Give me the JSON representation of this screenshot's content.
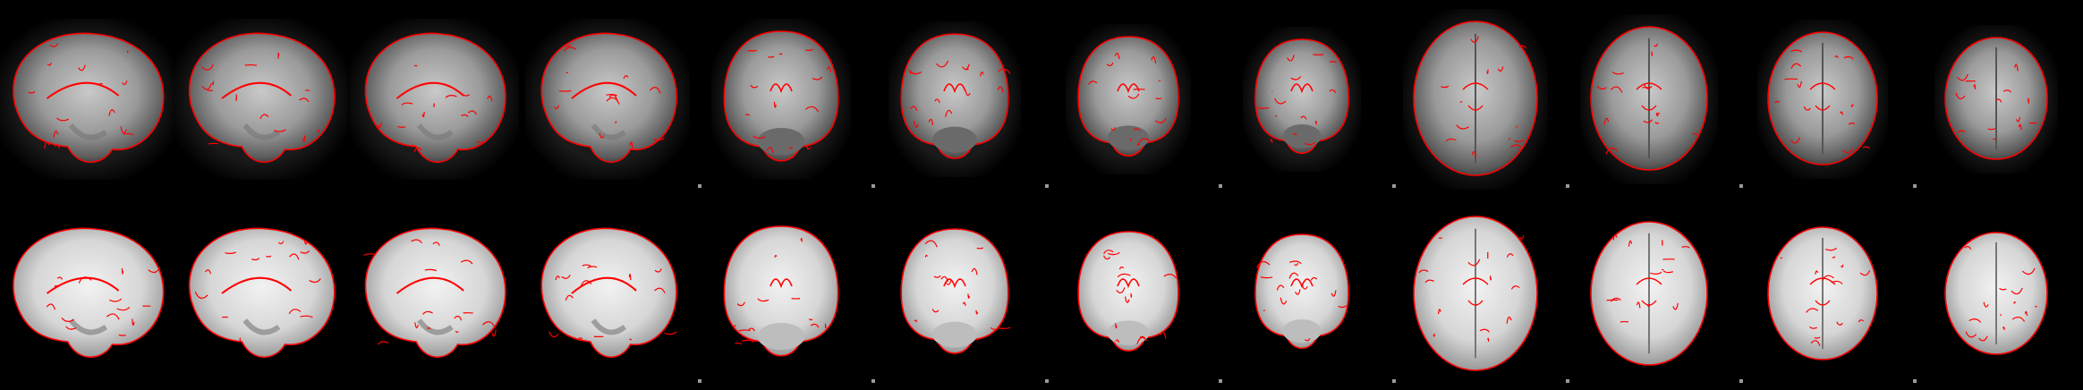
{
  "figure": {
    "description_colors": {
      "background": "#000000",
      "overlay": "#ff0000",
      "tissue_light": "#e6e6e6",
      "tissue_dark": "#6f6f6f"
    },
    "rows": [
      {
        "name": "row-top",
        "modality": "functional-mean",
        "panels": [
          {
            "view": "sagittal"
          },
          {
            "view": "sagittal"
          },
          {
            "view": "sagittal"
          },
          {
            "view": "sagittal"
          },
          {
            "view": "coronal"
          },
          {
            "view": "coronal"
          },
          {
            "view": "coronal"
          },
          {
            "view": "coronal"
          },
          {
            "view": "axial"
          },
          {
            "view": "axial"
          },
          {
            "view": "axial"
          },
          {
            "view": "axial"
          }
        ]
      },
      {
        "name": "row-bottom",
        "modality": "template",
        "panels": [
          {
            "view": "sagittal"
          },
          {
            "view": "sagittal"
          },
          {
            "view": "sagittal"
          },
          {
            "view": "sagittal"
          },
          {
            "view": "coronal"
          },
          {
            "view": "coronal"
          },
          {
            "view": "coronal"
          },
          {
            "view": "coronal"
          },
          {
            "view": "axial"
          },
          {
            "view": "axial"
          },
          {
            "view": "axial"
          },
          {
            "view": "axial"
          }
        ]
      }
    ]
  }
}
